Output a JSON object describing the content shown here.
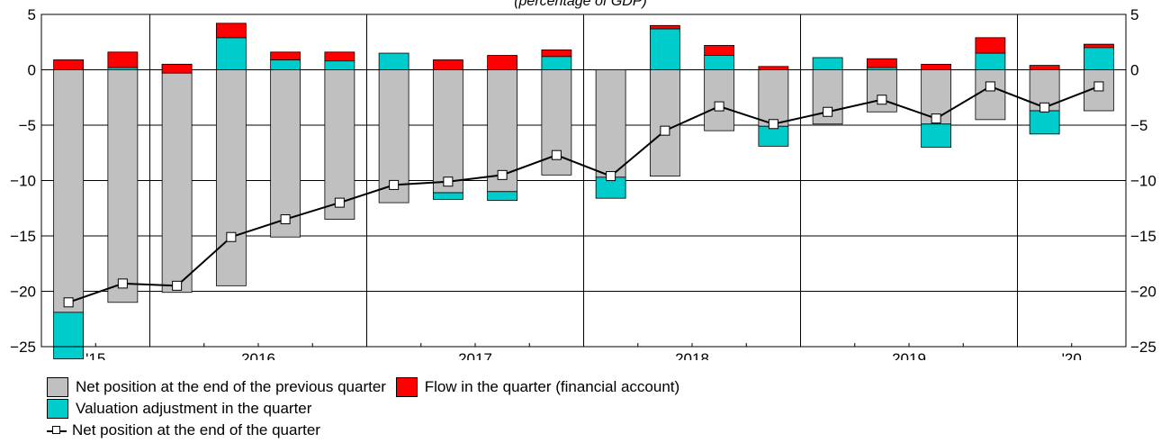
{
  "chart_data": {
    "type": "bar",
    "subtitle": "(percentage of GDP)",
    "ylim": [
      -25,
      5
    ],
    "yticks": [
      5,
      0,
      -5,
      -10,
      -15,
      -20,
      -25
    ],
    "x_labels": [
      "'15",
      "2016",
      "2017",
      "2018",
      "2019",
      "'20"
    ],
    "colors": {
      "previous": "#c0c0c0",
      "flow": "#ff0000",
      "valuation": "#00cccc",
      "line": "#000000",
      "marker": "#ffffff"
    },
    "series": [
      {
        "name": "Net position at the end of the previous quarter",
        "values": [
          -21.9,
          -21.0,
          -20.1,
          -19.5,
          -15.1,
          -13.5,
          -12.0,
          -11.1,
          -11.0,
          -9.5,
          -9.7,
          -9.6,
          -5.5,
          -5.1,
          -4.9,
          -3.8,
          -4.9,
          -4.5,
          -3.7,
          -3.7
        ]
      },
      {
        "name": "Valuation adjustment in the quarter",
        "values": [
          -4.2,
          0.2,
          0.5,
          2.9,
          0.9,
          0.8,
          1.5,
          -0.6,
          -0.8,
          1.2,
          -1.9,
          3.7,
          1.3,
          -1.8,
          1.1,
          0.2,
          -2.1,
          1.5,
          -2.1,
          2.3
        ]
      },
      {
        "name": "Flow in the quarter (financial account)",
        "values": [
          0.9,
          1.4,
          -0.8,
          1.3,
          0.7,
          0.8,
          0.0,
          0.9,
          1.3,
          0.6,
          0.0,
          0.3,
          0.9,
          0.3,
          0.0,
          0.8,
          0.5,
          1.4,
          0.4,
          -0.3
        ]
      },
      {
        "name": "Net position at the end of the quarter",
        "values": [
          -21.0,
          -19.3,
          -19.5,
          -15.1,
          -13.5,
          -12.0,
          -10.4,
          -10.1,
          -9.5,
          -7.7,
          -9.6,
          -5.5,
          -3.3,
          -4.9,
          -3.8,
          -2.7,
          -4.4,
          -1.5,
          -3.4,
          -1.5
        ]
      }
    ],
    "grid": true,
    "legend": "bottom-left"
  }
}
